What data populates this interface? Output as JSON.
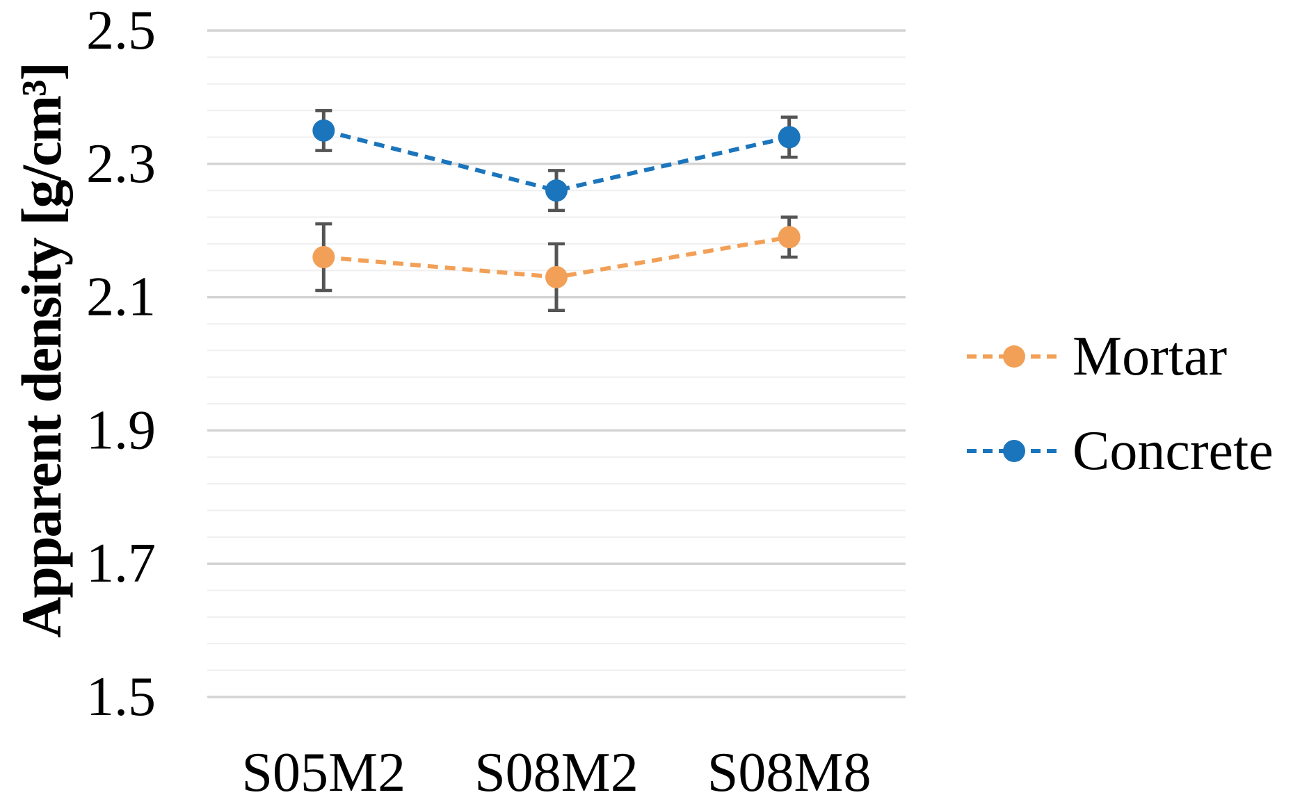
{
  "chart_data": {
    "type": "line",
    "title": "",
    "ylabel": "Apparent density [g/cm³]",
    "xlabel": "",
    "categories": [
      "S05M2",
      "S08M2",
      "S08M8"
    ],
    "series": [
      {
        "name": "Mortar",
        "color": "#F2A057",
        "line_style": "dashed",
        "marker": "circle",
        "values": [
          2.16,
          2.13,
          2.19
        ],
        "errors": [
          0.05,
          0.05,
          0.03
        ]
      },
      {
        "name": "Concrete",
        "color": "#1B75BC",
        "line_style": "dashed",
        "marker": "circle",
        "values": [
          2.35,
          2.26,
          2.34
        ],
        "errors": [
          0.03,
          0.03,
          0.03
        ]
      }
    ],
    "ylim": [
      1.5,
      2.5
    ],
    "y_major_unit": 0.2,
    "y_minor_unit": 0.04,
    "y_tick_labels": [
      "2.5",
      "2.3",
      "2.1",
      "1.9",
      "1.7",
      "1.5"
    ],
    "grid": "horizontal, major and minor, no vertical axis line",
    "legend_position": "right",
    "colors": {
      "error_bar": "#545454",
      "major_grid": "#D4D4D4",
      "minor_grid": "#F0F0F0",
      "text": "#000000",
      "background": "#FFFFFF"
    }
  }
}
